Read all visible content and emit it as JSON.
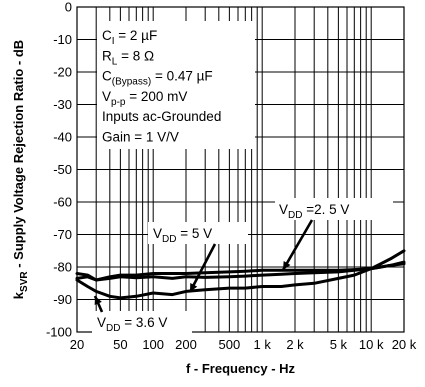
{
  "chart_data": {
    "type": "line",
    "xlabel": "f - Frequency - Hz",
    "ylabel_main": "k",
    "ylabel_sub": "SVR",
    "ylabel_rest": " - Supply Voltage Rejection Ratio - dB",
    "xscale": "log",
    "xlim": [
      20,
      20000
    ],
    "ylim": [
      -100,
      0
    ],
    "grid": true,
    "x_ticks": [
      {
        "v": 20,
        "label": "20"
      },
      {
        "v": 50,
        "label": "50"
      },
      {
        "v": 100,
        "label": "100"
      },
      {
        "v": 200,
        "label": "200"
      },
      {
        "v": 500,
        "label": "500"
      },
      {
        "v": 1000,
        "label": "1 k"
      },
      {
        "v": 2000,
        "label": "2 k"
      },
      {
        "v": 5000,
        "label": "5 k"
      },
      {
        "v": 10000,
        "label": "10 k"
      },
      {
        "v": 20000,
        "label": "20 k"
      }
    ],
    "y_ticks": [
      {
        "v": 0,
        "label": "0"
      },
      {
        "v": -10,
        "label": "-10"
      },
      {
        "v": -20,
        "label": "-20"
      },
      {
        "v": -30,
        "label": "-30"
      },
      {
        "v": -40,
        "label": "-40"
      },
      {
        "v": -50,
        "label": "-50"
      },
      {
        "v": -60,
        "label": "-60"
      },
      {
        "v": -70,
        "label": "-70"
      },
      {
        "v": -80,
        "label": "-80"
      },
      {
        "v": -90,
        "label": "-90"
      },
      {
        "v": -100,
        "label": "-100"
      }
    ],
    "conditions": [
      {
        "main": "C",
        "sub": "I",
        "rest": " = 2 µF"
      },
      {
        "main": "R",
        "sub": "L",
        "rest": " = 8 Ω"
      },
      {
        "main": "C",
        "sub": "(Bypass)",
        "rest": " = 0.47 µF"
      },
      {
        "main": "V",
        "sub": "p-p",
        "rest": " = 200 mV"
      },
      {
        "main": "Inputs ac-Grounded",
        "sub": "",
        "rest": ""
      },
      {
        "main": "Gain = 1 V/V",
        "sub": "",
        "rest": ""
      }
    ],
    "series": [
      {
        "label_main": "V",
        "label_sub": "DD",
        "label_rest": " =2. 5 V",
        "x": [
          20,
          25,
          30,
          40,
          50,
          70,
          100,
          150,
          200,
          300,
          500,
          700,
          1000,
          1500,
          2000,
          3000,
          5000,
          7000,
          10000,
          15000,
          20000
        ],
        "y": [
          -83.5,
          -83,
          -84,
          -83.5,
          -83,
          -83.3,
          -83,
          -83.5,
          -83,
          -83.2,
          -83,
          -82.8,
          -82.5,
          -82.2,
          -82,
          -81.8,
          -81.5,
          -81,
          -80.5,
          -79.5,
          -79
        ]
      },
      {
        "label_main": "V",
        "label_sub": "DD",
        "label_rest": " = 5 V",
        "x": [
          20,
          25,
          30,
          40,
          50,
          70,
          100,
          150,
          200,
          300,
          500,
          700,
          1000,
          1500,
          2000,
          3000,
          5000,
          7000,
          10000,
          15000,
          20000
        ],
        "y": [
          -82,
          -82.5,
          -84,
          -83,
          -82.5,
          -82.5,
          -82,
          -82,
          -82,
          -81.8,
          -81.5,
          -81.3,
          -81,
          -81,
          -81,
          -81,
          -81,
          -80.8,
          -80.5,
          -79.5,
          -78.5
        ]
      },
      {
        "label_main": "V",
        "label_sub": "DD",
        "label_rest": " = 3.6 V",
        "x": [
          20,
          25,
          30,
          40,
          50,
          70,
          100,
          150,
          200,
          300,
          500,
          700,
          1000,
          1500,
          2000,
          3000,
          5000,
          7000,
          10000,
          15000,
          20000
        ],
        "y": [
          -84,
          -86,
          -87.5,
          -89,
          -89.5,
          -89,
          -88,
          -88.5,
          -87.5,
          -87,
          -86.5,
          -86.5,
          -86,
          -86,
          -85.5,
          -85,
          -83.5,
          -82.5,
          -80.5,
          -77.5,
          -75
        ]
      }
    ]
  }
}
